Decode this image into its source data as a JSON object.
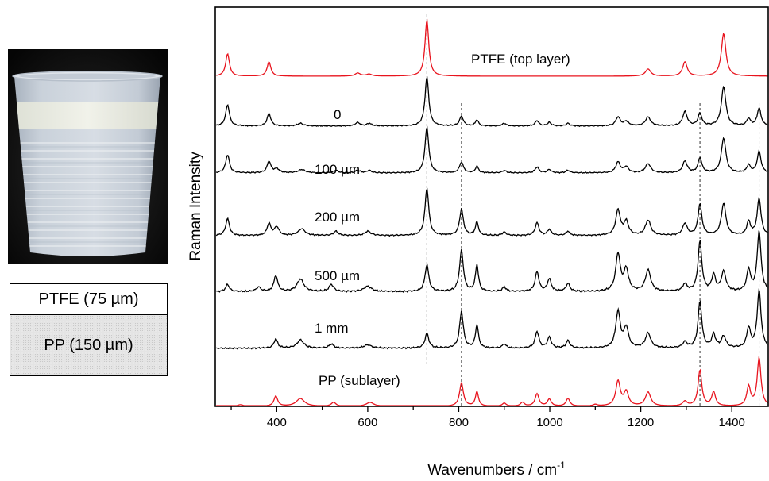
{
  "chart_data": {
    "type": "line",
    "xlabel": "Wavenumbers / cm",
    "xlabel_superscript": "-1",
    "ylabel": "Raman Intensity",
    "xlim": [
      265,
      1480
    ],
    "xticks": [
      400,
      600,
      800,
      1000,
      1200,
      1400
    ],
    "grid": false,
    "legend": "none",
    "reference_lines": [
      730,
      806,
      1330,
      1460
    ],
    "series": [
      {
        "name": "PTFE (top layer)",
        "color": "#e8141e",
        "baseline": 0,
        "noise": 0,
        "peaks": [
          [
            292,
            22,
            5
          ],
          [
            383,
            14,
            5
          ],
          [
            578,
            3,
            7
          ],
          [
            603,
            2,
            7
          ],
          [
            730,
            55,
            5
          ],
          [
            1216,
            7,
            7
          ],
          [
            1297,
            14,
            6
          ],
          [
            1382,
            42,
            6
          ]
        ]
      },
      {
        "name": "0",
        "color": "#000000",
        "baseline": 1,
        "noise": 0.7,
        "peaks": [
          [
            292,
            24,
            5
          ],
          [
            383,
            14,
            5
          ],
          [
            452,
            3,
            8
          ],
          [
            578,
            4,
            6
          ],
          [
            603,
            3,
            6
          ],
          [
            730,
            55,
            5
          ],
          [
            806,
            11,
            5
          ],
          [
            840,
            7,
            4
          ],
          [
            900,
            3,
            5
          ],
          [
            972,
            6,
            5
          ],
          [
            999,
            4,
            5
          ],
          [
            1040,
            3,
            5
          ],
          [
            1150,
            10,
            6
          ],
          [
            1168,
            5,
            6
          ],
          [
            1216,
            10,
            7
          ],
          [
            1297,
            16,
            6
          ],
          [
            1330,
            14,
            5
          ],
          [
            1382,
            44,
            6
          ],
          [
            1437,
            8,
            5
          ],
          [
            1460,
            20,
            5
          ]
        ]
      },
      {
        "name": "100 µm",
        "color": "#000000",
        "baseline": 2,
        "noise": 0.8,
        "peaks": [
          [
            292,
            22,
            5
          ],
          [
            383,
            14,
            5
          ],
          [
            400,
            5,
            6
          ],
          [
            455,
            4,
            9
          ],
          [
            530,
            3,
            6
          ],
          [
            578,
            3,
            6
          ],
          [
            603,
            3,
            6
          ],
          [
            730,
            55,
            5
          ],
          [
            806,
            13,
            5
          ],
          [
            840,
            8,
            4
          ],
          [
            900,
            3,
            5
          ],
          [
            972,
            7,
            5
          ],
          [
            999,
            4,
            5
          ],
          [
            1040,
            3,
            5
          ],
          [
            1150,
            13,
            6
          ],
          [
            1168,
            7,
            6
          ],
          [
            1216,
            11,
            7
          ],
          [
            1297,
            14,
            6
          ],
          [
            1330,
            18,
            5
          ],
          [
            1382,
            42,
            6
          ],
          [
            1437,
            9,
            5
          ],
          [
            1460,
            26,
            5
          ]
        ]
      },
      {
        "name": "200 µm",
        "color": "#000000",
        "baseline": 3,
        "noise": 0.9,
        "peaks": [
          [
            292,
            20,
            5
          ],
          [
            383,
            14,
            5
          ],
          [
            400,
            10,
            6
          ],
          [
            455,
            8,
            9
          ],
          [
            530,
            5,
            6
          ],
          [
            600,
            5,
            8
          ],
          [
            730,
            56,
            5
          ],
          [
            806,
            31,
            5
          ],
          [
            840,
            16,
            4
          ],
          [
            900,
            4,
            5
          ],
          [
            972,
            15,
            5
          ],
          [
            999,
            7,
            5
          ],
          [
            1040,
            5,
            5
          ],
          [
            1150,
            30,
            6
          ],
          [
            1168,
            16,
            6
          ],
          [
            1216,
            18,
            7
          ],
          [
            1297,
            14,
            6
          ],
          [
            1330,
            37,
            5
          ],
          [
            1382,
            38,
            6
          ],
          [
            1437,
            16,
            5
          ],
          [
            1460,
            44,
            5
          ]
        ]
      },
      {
        "name": "500 µm",
        "color": "#000000",
        "baseline": 4,
        "noise": 1.1,
        "peaks": [
          [
            292,
            8,
            5
          ],
          [
            360,
            5,
            6
          ],
          [
            398,
            18,
            5
          ],
          [
            452,
            14,
            9
          ],
          [
            520,
            8,
            6
          ],
          [
            600,
            6,
            10
          ],
          [
            730,
            30,
            5
          ],
          [
            806,
            46,
            5
          ],
          [
            840,
            30,
            4
          ],
          [
            900,
            5,
            5
          ],
          [
            972,
            22,
            5
          ],
          [
            999,
            14,
            5
          ],
          [
            1040,
            9,
            5
          ],
          [
            1150,
            42,
            6
          ],
          [
            1168,
            24,
            6
          ],
          [
            1216,
            24,
            7
          ],
          [
            1297,
            8,
            6
          ],
          [
            1330,
            56,
            5
          ],
          [
            1360,
            18,
            5
          ],
          [
            1382,
            22,
            6
          ],
          [
            1437,
            24,
            5
          ],
          [
            1460,
            68,
            5
          ]
        ]
      },
      {
        "name": "1 mm",
        "color": "#000000",
        "baseline": 5,
        "noise": 1.1,
        "peaks": [
          [
            398,
            11,
            5
          ],
          [
            452,
            10,
            9
          ],
          [
            520,
            5,
            6
          ],
          [
            600,
            4,
            10
          ],
          [
            730,
            18,
            5
          ],
          [
            806,
            44,
            5
          ],
          [
            840,
            28,
            4
          ],
          [
            900,
            5,
            5
          ],
          [
            972,
            20,
            5
          ],
          [
            999,
            13,
            5
          ],
          [
            1040,
            9,
            5
          ],
          [
            1150,
            44,
            6
          ],
          [
            1168,
            24,
            6
          ],
          [
            1216,
            18,
            7
          ],
          [
            1297,
            7,
            6
          ],
          [
            1330,
            56,
            5
          ],
          [
            1360,
            16,
            5
          ],
          [
            1382,
            14,
            6
          ],
          [
            1437,
            24,
            5
          ],
          [
            1460,
            70,
            5
          ]
        ]
      },
      {
        "name": "PP (sublayer)",
        "color": "#e8141e",
        "baseline": 0,
        "noise": 0,
        "peaks": [
          [
            320,
            2,
            8
          ],
          [
            398,
            13,
            5
          ],
          [
            452,
            10,
            11
          ],
          [
            525,
            5,
            6
          ],
          [
            605,
            5,
            10
          ],
          [
            806,
            30,
            5
          ],
          [
            840,
            19,
            4
          ],
          [
            900,
            4,
            5
          ],
          [
            940,
            5,
            5
          ],
          [
            972,
            16,
            5
          ],
          [
            999,
            9,
            5
          ],
          [
            1040,
            10,
            5
          ],
          [
            1100,
            2,
            6
          ],
          [
            1150,
            32,
            6
          ],
          [
            1168,
            18,
            6
          ],
          [
            1216,
            18,
            7
          ],
          [
            1297,
            6,
            6
          ],
          [
            1330,
            46,
            5
          ],
          [
            1360,
            18,
            5
          ],
          [
            1437,
            25,
            5
          ],
          [
            1460,
            62,
            5
          ]
        ]
      }
    ]
  },
  "layer_diagram": {
    "top": "PTFE (75 µm)",
    "bottom": "PP (150 µm)"
  }
}
